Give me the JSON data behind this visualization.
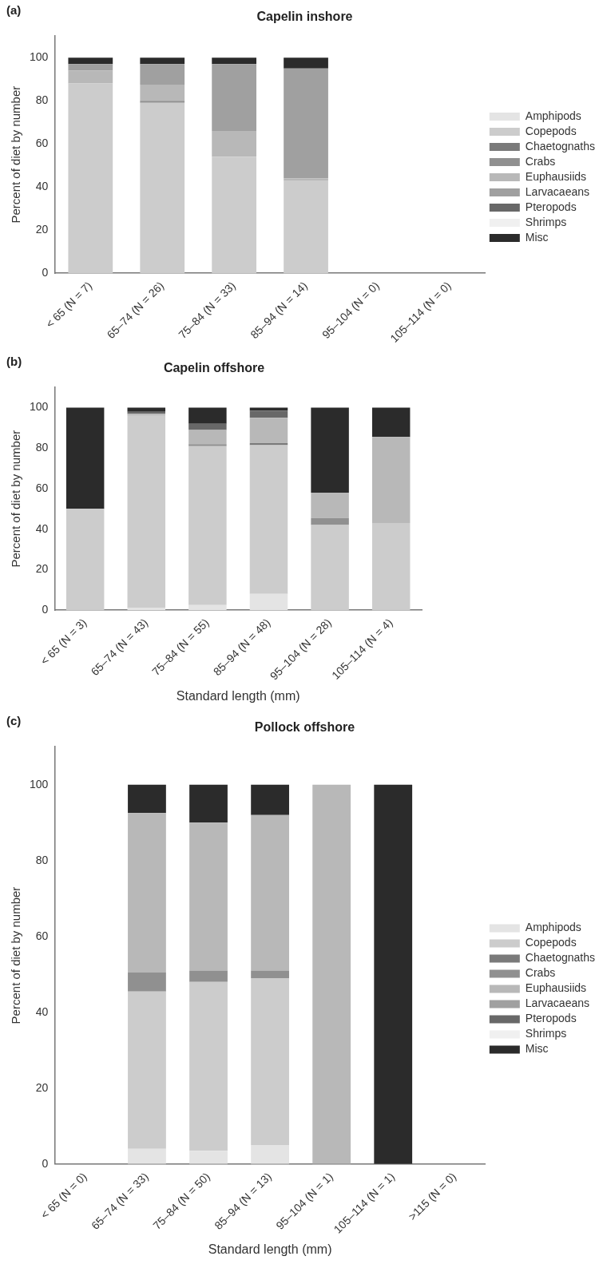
{
  "chart_data": [
    {
      "type": "bar",
      "title": "Capelin inshore",
      "ylabel": "Percent of diet by number",
      "annotations": [
        "(a)"
      ],
      "stacked": true,
      "legend": "right",
      "ylim": [
        0,
        110
      ],
      "yticks": [
        0,
        20,
        40,
        60,
        80,
        100
      ],
      "categories": [
        "< 65 (N = 7)",
        "65–74 (N = 26)",
        "75–84 (N = 33)",
        "85–94 (N = 14)",
        "95–104 (N = 0)",
        "105–114 (N = 0)"
      ],
      "series": [
        {
          "name": "Amphipods",
          "color": "#e4e4e4",
          "values": [
            0,
            0,
            0,
            0,
            null,
            null
          ]
        },
        {
          "name": "Copepods",
          "color": "#cccccc",
          "values": [
            88,
            79,
            54,
            43,
            null,
            null
          ]
        },
        {
          "name": "Chaetognaths",
          "color": "#7a7a7a",
          "values": [
            0,
            0,
            0,
            0,
            null,
            null
          ]
        },
        {
          "name": "Crabs",
          "color": "#909090",
          "values": [
            0,
            1,
            0,
            0,
            null,
            null
          ]
        },
        {
          "name": "Euphausiids",
          "color": "#b8b8b8",
          "values": [
            6,
            7.5,
            12,
            1,
            null,
            null
          ]
        },
        {
          "name": "Larvacaeans",
          "color": "#a0a0a0",
          "values": [
            3,
            9.5,
            31,
            51,
            null,
            null
          ]
        },
        {
          "name": "Pteropods",
          "color": "#686868",
          "values": [
            0,
            0,
            0,
            0,
            null,
            null
          ]
        },
        {
          "name": "Shrimps",
          "color": "#f0f0f0",
          "values": [
            0,
            0,
            0,
            0,
            null,
            null
          ]
        },
        {
          "name": "Misc",
          "color": "#2b2b2b",
          "values": [
            3,
            3,
            3,
            5,
            null,
            null
          ]
        }
      ]
    },
    {
      "type": "bar",
      "title": "Capelin offshore",
      "ylabel": "Percent of diet by number",
      "xlabel": "Standard length (mm)",
      "annotations": [
        "(b)"
      ],
      "stacked": true,
      "ylim": [
        0,
        110
      ],
      "yticks": [
        0,
        20,
        40,
        60,
        80,
        100
      ],
      "categories": [
        "< 65 (N = 3)",
        "65–74 (N = 43)",
        "75–84 (N = 55)",
        "85–94 (N = 48)",
        "95–104 (N = 28)",
        "105–114 (N = 4)"
      ],
      "series": [
        {
          "color": "#e4e4e4",
          "values": [
            0,
            1,
            2.5,
            8,
            0,
            0
          ]
        },
        {
          "color": "#cccccc",
          "values": [
            50,
            95,
            78.5,
            73.5,
            42,
            43
          ]
        },
        {
          "color": "#7a7a7a",
          "values": [
            0,
            0,
            0,
            1,
            0,
            0
          ]
        },
        {
          "color": "#909090",
          "values": [
            0,
            0,
            1,
            0,
            3.5,
            0
          ]
        },
        {
          "color": "#b8b8b8",
          "values": [
            0,
            1,
            7,
            12.5,
            12.5,
            42.5
          ]
        },
        {
          "color": "#a0a0a0",
          "values": [
            0,
            0,
            0,
            0,
            0,
            0
          ]
        },
        {
          "color": "#686868",
          "values": [
            0,
            1,
            3,
            3.5,
            0,
            0
          ]
        },
        {
          "color": "#f0f0f0",
          "values": [
            0,
            0,
            0,
            0,
            0,
            0
          ]
        },
        {
          "color": "#2b2b2b",
          "values": [
            50,
            2,
            8,
            1.5,
            42,
            14.5
          ]
        }
      ]
    },
    {
      "type": "bar",
      "title": "Pollock offshore",
      "ylabel": "Percent of diet by number",
      "xlabel": "Standard length (mm)",
      "annotations": [
        "(c)"
      ],
      "stacked": true,
      "legend": "right",
      "ylim": [
        0,
        110
      ],
      "yticks": [
        0,
        20,
        40,
        60,
        80,
        100
      ],
      "categories": [
        "< 65 (N = 0)",
        "65–74 (N = 33)",
        "75–84 (N = 50)",
        "85–94 (N = 13)",
        "95–104 (N = 1)",
        "105–114 (N = 1)",
        ">115 (N = 0)"
      ],
      "series": [
        {
          "name": "Amphipods",
          "color": "#e4e4e4",
          "values": [
            null,
            4,
            3.5,
            5,
            0,
            0,
            null
          ]
        },
        {
          "name": "Copepods",
          "color": "#cccccc",
          "values": [
            null,
            41.5,
            44.5,
            44,
            0,
            0,
            null
          ]
        },
        {
          "name": "Chaetognaths",
          "color": "#7a7a7a",
          "values": [
            null,
            0,
            0,
            0,
            0,
            0,
            null
          ]
        },
        {
          "name": "Crabs",
          "color": "#909090",
          "values": [
            null,
            5,
            3,
            2,
            0,
            0,
            null
          ]
        },
        {
          "name": "Euphausiids",
          "color": "#b8b8b8",
          "values": [
            null,
            42,
            39,
            41,
            100,
            0,
            null
          ]
        },
        {
          "name": "Larvacaeans",
          "color": "#a0a0a0",
          "values": [
            null,
            0,
            0,
            0,
            0,
            0,
            null
          ]
        },
        {
          "name": "Pteropods",
          "color": "#686868",
          "values": [
            null,
            0,
            0,
            0,
            0,
            0,
            null
          ]
        },
        {
          "name": "Shrimps",
          "color": "#f0f0f0",
          "values": [
            null,
            0,
            0,
            0,
            0,
            0,
            null
          ]
        },
        {
          "name": "Misc",
          "color": "#2b2b2b",
          "values": [
            null,
            7.5,
            10,
            8,
            0,
            100,
            null
          ]
        }
      ]
    }
  ]
}
